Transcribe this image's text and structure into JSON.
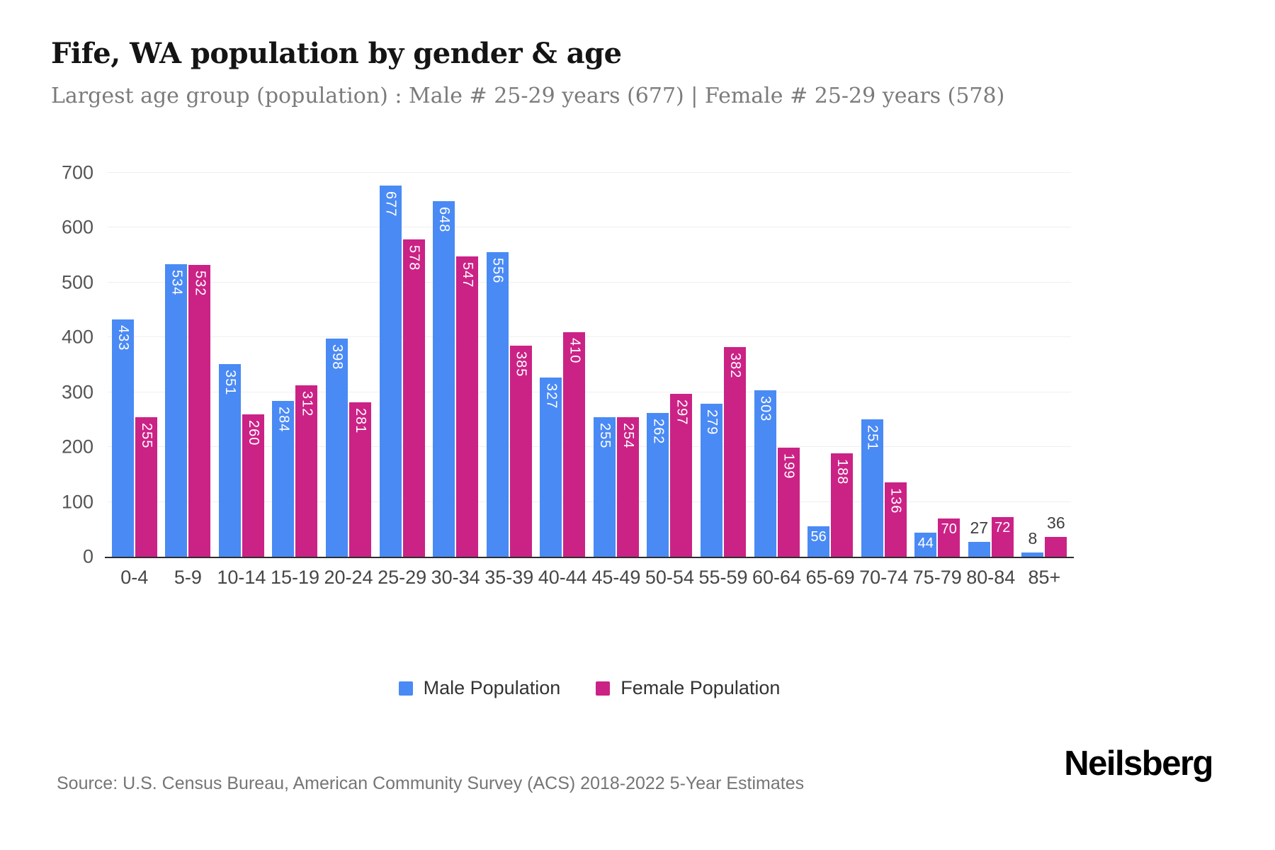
{
  "header": {
    "title": "Fife, WA population by gender & age",
    "subtitle": "Largest age group (population) : Male # 25-29 years (677) | Female # 25-29 years (578)"
  },
  "chart_data": {
    "type": "bar",
    "title": "Fife, WA population by gender & age",
    "categories": [
      "0-4",
      "5-9",
      "10-14",
      "15-19",
      "20-24",
      "25-29",
      "30-34",
      "35-39",
      "40-44",
      "45-49",
      "50-54",
      "55-59",
      "60-64",
      "65-69",
      "70-74",
      "75-79",
      "80-84",
      "85+"
    ],
    "series": [
      {
        "name": "Male Population",
        "color": "#4a8af4",
        "values": [
          433,
          534,
          351,
          284,
          398,
          677,
          648,
          556,
          327,
          255,
          262,
          279,
          303,
          56,
          251,
          44,
          27,
          8
        ]
      },
      {
        "name": "Female Population",
        "color": "#cb2286",
        "values": [
          255,
          532,
          260,
          312,
          281,
          578,
          547,
          385,
          410,
          254,
          297,
          382,
          199,
          188,
          136,
          70,
          72,
          36
        ]
      }
    ],
    "ylim": [
      0,
      700
    ],
    "yticks": [
      0,
      100,
      200,
      300,
      400,
      500,
      600,
      700
    ],
    "grid": true,
    "legend_position": "bottom"
  },
  "footer": {
    "source": "Source: U.S. Census Bureau, American Community Survey (ACS) 2018-2022 5-Year Estimates",
    "brand": "Neilsberg"
  }
}
